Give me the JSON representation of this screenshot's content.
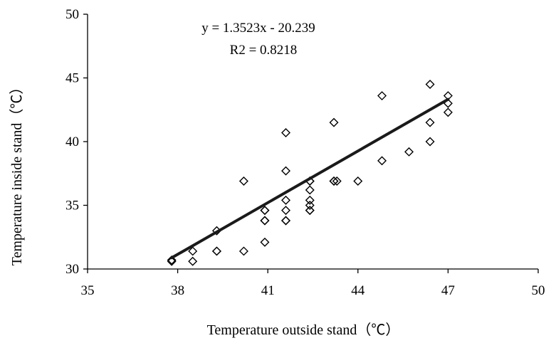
{
  "chart_data": {
    "type": "scatter",
    "title": "",
    "xlabel": "Temperature outside stand（℃）",
    "ylabel": "Temperature inside stand（℃）",
    "xlim": [
      35,
      50
    ],
    "ylim": [
      30,
      50
    ],
    "xticks": [
      "35",
      "38",
      "41",
      "44",
      "47",
      "50"
    ],
    "yticks": [
      "30",
      "35",
      "40",
      "45",
      "50"
    ],
    "grid": false,
    "legend": "none",
    "marker": "diamond-open",
    "series": [
      {
        "points": [
          [
            37.8,
            30.6
          ],
          [
            37.8,
            30.7
          ],
          [
            38.5,
            31.4
          ],
          [
            38.5,
            30.6
          ],
          [
            39.3,
            33.0
          ],
          [
            39.3,
            31.4
          ],
          [
            39.3,
            31.4
          ],
          [
            40.2,
            36.9
          ],
          [
            40.2,
            31.4
          ],
          [
            40.9,
            34.6
          ],
          [
            40.9,
            34.6
          ],
          [
            40.9,
            33.8
          ],
          [
            40.9,
            33.8
          ],
          [
            40.9,
            32.1
          ],
          [
            41.6,
            40.7
          ],
          [
            41.6,
            37.7
          ],
          [
            41.6,
            35.4
          ],
          [
            41.6,
            34.6
          ],
          [
            41.6,
            33.8
          ],
          [
            41.6,
            33.8
          ],
          [
            42.4,
            36.9
          ],
          [
            42.4,
            36.9
          ],
          [
            42.4,
            36.2
          ],
          [
            42.4,
            35.4
          ],
          [
            42.4,
            35.0
          ],
          [
            42.4,
            34.6
          ],
          [
            42.4,
            34.6
          ],
          [
            43.2,
            41.5
          ],
          [
            43.2,
            36.9
          ],
          [
            43.2,
            36.9
          ],
          [
            43.3,
            36.9
          ],
          [
            44.0,
            36.9
          ],
          [
            44.8,
            43.6
          ],
          [
            44.8,
            38.5
          ],
          [
            45.7,
            39.2
          ],
          [
            46.4,
            44.5
          ],
          [
            46.4,
            41.5
          ],
          [
            46.4,
            40.0
          ],
          [
            47.0,
            43.6
          ],
          [
            47.0,
            43.0
          ],
          [
            47.0,
            42.3
          ]
        ]
      }
    ],
    "trendline": {
      "slope": 1.3523,
      "intercept": -20.239,
      "x_range": [
        37.8,
        47.0
      ],
      "equation_label": "y = 1.3523x - 20.239",
      "r2_label": "R2 = 0.8218"
    },
    "colors": {
      "axis": "#000000",
      "marker": "#000000",
      "trendline": "#1a1a1a"
    }
  }
}
